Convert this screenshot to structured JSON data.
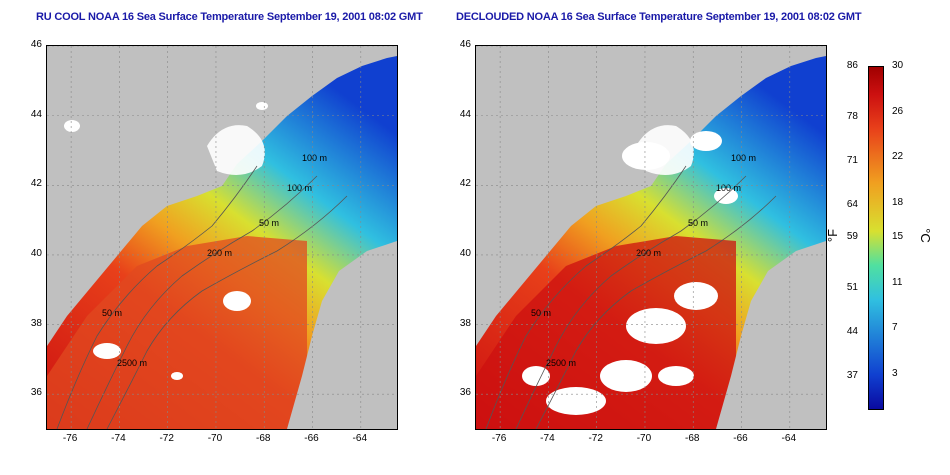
{
  "panels": [
    {
      "title": "RU COOL NOAA 16 Sea Surface Temperature September 19, 2001 08:02 GMT",
      "mode": "cloudy"
    },
    {
      "title": "DECLOUDED NOAA 16 Sea Surface Temperature September 19, 2001 08:02 GMT",
      "mode": "declouded"
    }
  ],
  "axes": {
    "lat_ticks": [
      "46",
      "44",
      "42",
      "40",
      "38",
      "36"
    ],
    "lon_ticks": [
      "-76",
      "-74",
      "-72",
      "-70",
      "-68",
      "-66",
      "-64"
    ],
    "lat_range": [
      35,
      46
    ],
    "lon_range": [
      -77,
      -62.5
    ]
  },
  "contours": [
    {
      "label": "100 m"
    },
    {
      "label": "100 m"
    },
    {
      "label": "50 m"
    },
    {
      "label": "200 m"
    },
    {
      "label": "50 m"
    },
    {
      "label": "2500 m"
    }
  ],
  "colorbar": {
    "fahrenheit_ticks": [
      "86",
      "78",
      "71",
      "64",
      "59",
      "51",
      "44",
      "37"
    ],
    "celsius_ticks": [
      "30",
      "26",
      "22",
      "18",
      "15",
      "11",
      "7",
      "3"
    ],
    "fahrenheit_unit": "°F",
    "celsius_unit": "°C",
    "range_c": [
      0,
      30
    ]
  },
  "colors": {
    "land": "#c0c0c0",
    "cloud": "#ffffff",
    "warm": "#e8401a",
    "hot": "#cc1010",
    "mid": "#f0a020",
    "cool": "#d8e030",
    "cold": "#30c0e0",
    "coldest": "#1040d0",
    "title": "#1a1aa8"
  }
}
